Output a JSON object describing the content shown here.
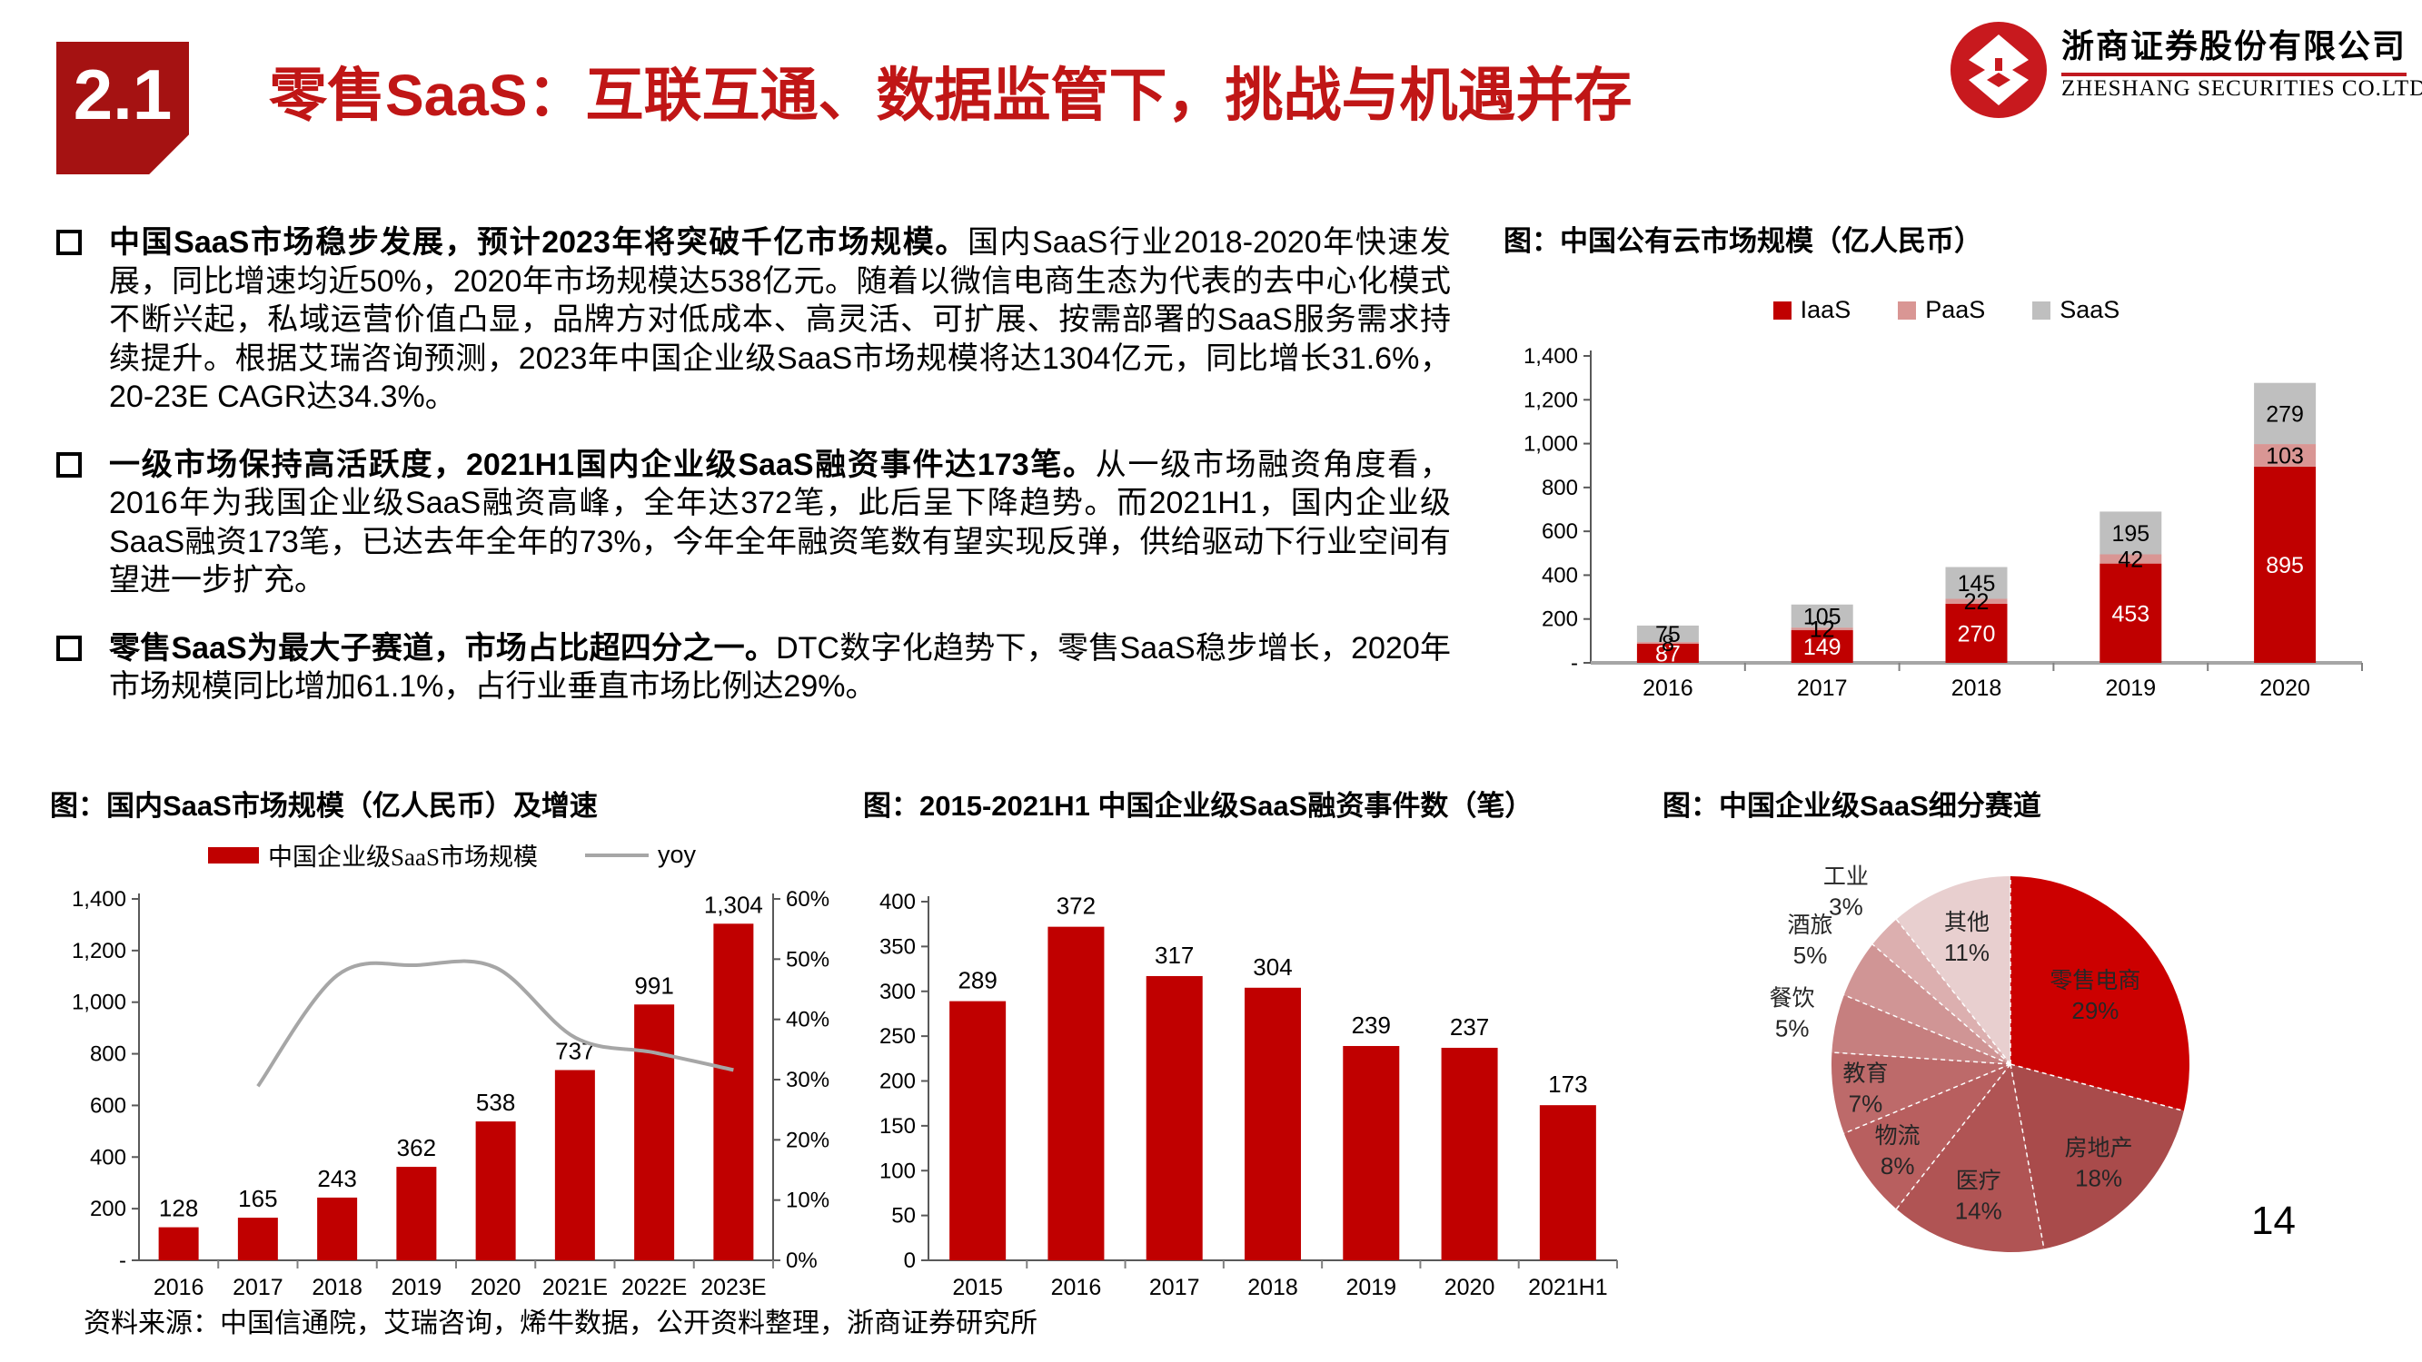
{
  "page": {
    "section_number": "2.1",
    "title": "零售SaaS：互联互通、数据监管下，挑战与机遇并存",
    "page_number": "14",
    "source": "资料来源：中国信通院，艾瑞咨询，烯牛数据，公开资料整理，浙商证券研究所"
  },
  "logo": {
    "company_cn": "浙商证券股份有限公司",
    "company_en": "ZHESHANG SECURITIES CO.LTD"
  },
  "colors": {
    "brand_red": "#c00000",
    "tab_red": "#a51212",
    "title_red": "#c01616",
    "paas_pink": "#d99694",
    "saas_gray": "#bfbfbf",
    "yoy_gray": "#a6a6a6"
  },
  "bullets": [
    {
      "lead": "中国SaaS市场稳步发展，预计2023年将突破千亿市场规模。",
      "body": "国内SaaS行业2018-2020年快速发展，同比增速均近50%，2020年市场规模达538亿元。随着以微信电商生态为代表的去中心化模式不断兴起，私域运营价值凸显，品牌方对低成本、高灵活、可扩展、按需部署的SaaS服务需求持续提升。根据艾瑞咨询预测，2023年中国企业级SaaS市场规模将达1304亿元，同比增长31.6%，20-23E CAGR达34.3%。"
    },
    {
      "lead": "一级市场保持高活跃度，2021H1国内企业级SaaS融资事件达173笔。",
      "body": "从一级市场融资角度看，2016年为我国企业级SaaS融资高峰，全年达372笔，此后呈下降趋势。而2021H1，国内企业级SaaS融资173笔，已达去年全年的73%，今年全年融资笔数有望实现反弹，供给驱动下行业空间有望进一步扩充。"
    },
    {
      "lead": "零售SaaS为最大子赛道，市场占比超四分之一。",
      "body": "DTC数字化趋势下，零售SaaS稳步增长，2020年市场规模同比增加61.1%，占行业垂直市场比例达29%。"
    }
  ],
  "chart_data": [
    {
      "id": "cloud",
      "type": "stacked-bar",
      "title": "图：中国公有云市场规模（亿人民币）",
      "categories": [
        "2016",
        "2017",
        "2018",
        "2019",
        "2020"
      ],
      "series": [
        {
          "name": "IaaS",
          "color": "#c00000",
          "label_color": "#ffffff",
          "values": [
            87,
            149,
            270,
            453,
            895
          ]
        },
        {
          "name": "PaaS",
          "color": "#d99694",
          "label_color": "#000000",
          "values": [
            8,
            12,
            22,
            42,
            103
          ]
        },
        {
          "name": "SaaS",
          "color": "#bfbfbf",
          "label_color": "#000000",
          "values": [
            75,
            105,
            145,
            195,
            279
          ]
        }
      ],
      "ylim": [
        0,
        1400
      ],
      "ytick_step": 200,
      "yticks": [
        "-",
        "200",
        "400",
        "600",
        "800",
        "1,000",
        "1,200",
        "1,400"
      ],
      "legend_position": "top-center",
      "grid": false
    },
    {
      "id": "saas-market",
      "type": "bar-line-combo",
      "title": "图：国内SaaS市场规模（亿人民币）及增速",
      "categories": [
        "2016",
        "2017",
        "2018",
        "2019",
        "2020",
        "2021E",
        "2022E",
        "2023E"
      ],
      "bar_series": {
        "name": "中国企业级SaaS市场规模",
        "color": "#c00000",
        "values": [
          128,
          165,
          243,
          362,
          538,
          737,
          991,
          1304
        ],
        "labels": [
          "128",
          "165",
          "243",
          "362",
          "538",
          "737",
          "991",
          "1,304"
        ]
      },
      "line_series": {
        "name": "yoy",
        "color": "#a6a6a6",
        "values": [
          null,
          28.9,
          47.3,
          49.0,
          48.6,
          37.0,
          34.5,
          31.6
        ]
      },
      "ylim_left": [
        0,
        1400
      ],
      "yticks_left": [
        "-",
        "200",
        "400",
        "600",
        "800",
        "1,000",
        "1,200",
        "1,400"
      ],
      "ylim_right": [
        0,
        60
      ],
      "yticks_right": [
        "0%",
        "10%",
        "20%",
        "30%",
        "40%",
        "50%",
        "60%"
      ],
      "legend_position": "top-center",
      "grid": false
    },
    {
      "id": "funding",
      "type": "bar",
      "title": "图：2015-2021H1 中国企业级SaaS融资事件数（笔）",
      "categories": [
        "2015",
        "2016",
        "2017",
        "2018",
        "2019",
        "2020",
        "2021H1"
      ],
      "values": [
        289,
        372,
        317,
        304,
        239,
        237,
        173
      ],
      "color": "#c00000",
      "ylim": [
        0,
        400
      ],
      "ytick_step": 50,
      "yticks": [
        "0",
        "50",
        "100",
        "150",
        "200",
        "250",
        "300",
        "350",
        "400"
      ],
      "grid": false
    },
    {
      "id": "segments",
      "type": "pie",
      "title": "图：中国企业级SaaS细分赛道",
      "slices": [
        {
          "name": "零售电商",
          "pct": 29,
          "color": "#cc0000"
        },
        {
          "name": "房地产",
          "pct": 18,
          "color": "#a94b4b"
        },
        {
          "name": "医疗",
          "pct": 14,
          "color": "#b05454"
        },
        {
          "name": "物流",
          "pct": 8,
          "color": "#b85f5f"
        },
        {
          "name": "教育",
          "pct": 7,
          "color": "#bd6a6a"
        },
        {
          "name": "餐饮",
          "pct": 5,
          "color": "#c67f7f"
        },
        {
          "name": "酒旅",
          "pct": 5,
          "color": "#d09595"
        },
        {
          "name": "工业",
          "pct": 3,
          "color": "#dcafaf"
        },
        {
          "name": "其他",
          "pct": 11,
          "color": "#e8cfcf"
        }
      ]
    }
  ]
}
